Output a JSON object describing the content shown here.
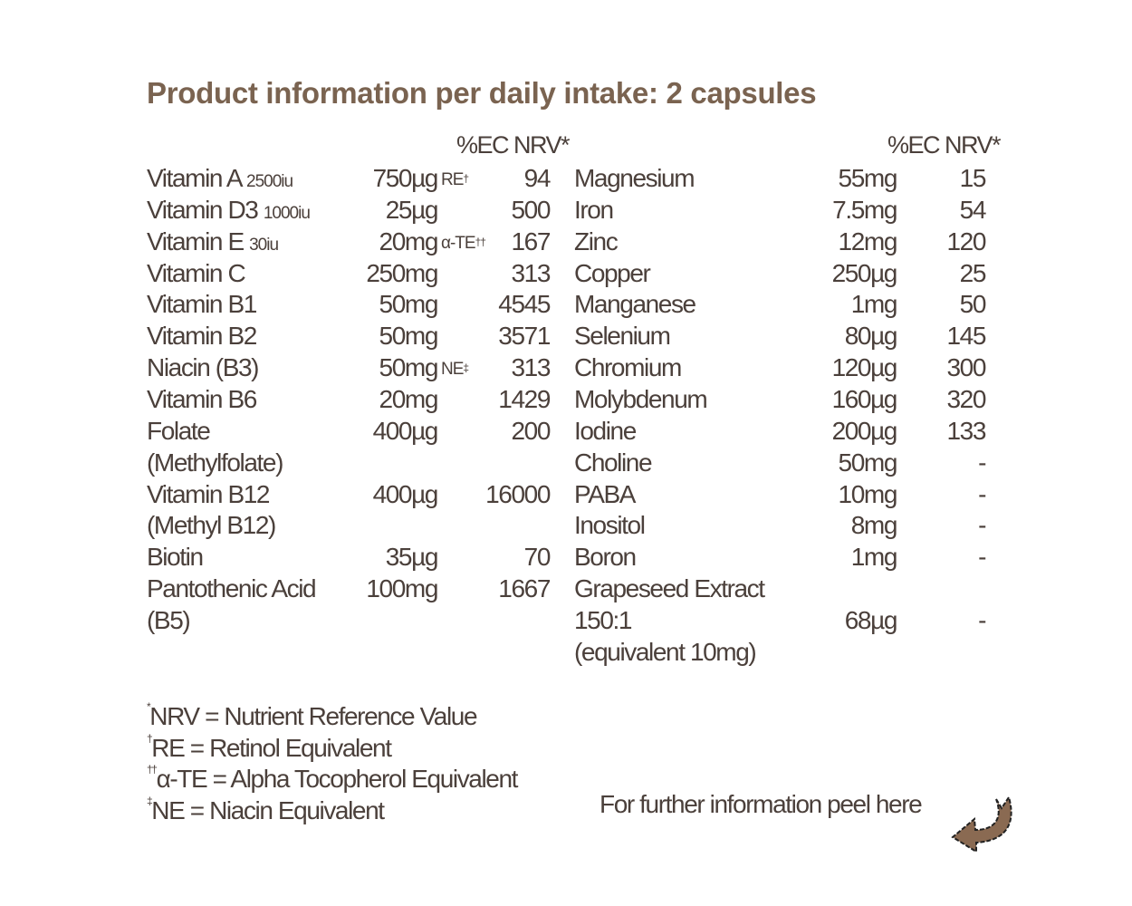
{
  "title": "Product information per daily intake: 2 capsules",
  "column_header": "%EC NRV*",
  "left_rows": [
    {
      "name": "Vitamin A",
      "note": "2500iu",
      "amount": "750µg",
      "unit_note": "RE",
      "unit_sup": "†",
      "nrv": "94"
    },
    {
      "name": "Vitamin D3",
      "note": "1000iu",
      "amount": "25µg",
      "nrv": "500"
    },
    {
      "name": "Vitamin E",
      "note": "30iu",
      "amount": "20mg",
      "unit_note": "α-TE",
      "unit_sup": "††",
      "nrv": "167"
    },
    {
      "name": "Vitamin C",
      "amount": "250mg",
      "nrv": "313"
    },
    {
      "name": "Vitamin B1",
      "amount": "50mg",
      "nrv": "4545"
    },
    {
      "name": "Vitamin B2",
      "amount": "50mg",
      "nrv": "3571"
    },
    {
      "name": "Niacin (B3)",
      "amount": "50mg",
      "unit_note": "NE",
      "unit_sup": "‡",
      "nrv": "313"
    },
    {
      "name": "Vitamin B6",
      "amount": "20mg",
      "nrv": "1429"
    },
    {
      "name": "Folate",
      "amount": "400µg",
      "nrv": "200"
    },
    {
      "name": "(Methylfolate)"
    },
    {
      "name": "Vitamin B12",
      "amount": "400µg",
      "nrv": "16000"
    },
    {
      "name": "(Methyl B12)"
    },
    {
      "name": "Biotin",
      "amount": "35µg",
      "nrv": "70"
    },
    {
      "name": "Pantothenic Acid",
      "amount": "100mg",
      "nrv": "1667"
    },
    {
      "name": "(B5)"
    }
  ],
  "right_rows": [
    {
      "name": "Magnesium",
      "amount": "55mg",
      "nrv": "15"
    },
    {
      "name": "Iron",
      "amount": "7.5mg",
      "nrv": "54"
    },
    {
      "name": "Zinc",
      "amount": "12mg",
      "nrv": "120"
    },
    {
      "name": "Copper",
      "amount": "250µg",
      "nrv": "25"
    },
    {
      "name": "Manganese",
      "amount": "1mg",
      "nrv": "50"
    },
    {
      "name": "Selenium",
      "amount": "80µg",
      "nrv": "145"
    },
    {
      "name": "Chromium",
      "amount": "120µg",
      "nrv": "300"
    },
    {
      "name": "Molybdenum",
      "amount": "160µg",
      "nrv": "320"
    },
    {
      "name": "Iodine",
      "amount": "200µg",
      "nrv": "133"
    },
    {
      "name": "Choline",
      "amount": "50mg",
      "nrv": "-"
    },
    {
      "name": "PABA",
      "amount": "10mg",
      "nrv": "-"
    },
    {
      "name": "Inositol",
      "amount": "8mg",
      "nrv": "-"
    },
    {
      "name": "Boron",
      "amount": "1mg",
      "nrv": "-"
    },
    {
      "name": "Grapeseed Extract"
    },
    {
      "name": "150:1",
      "amount": "68µg",
      "nrv": "-"
    },
    {
      "name": "(equivalent 10mg)"
    }
  ],
  "footnotes": [
    {
      "mark": "*",
      "text": "NRV = Nutrient Reference Value"
    },
    {
      "mark": "†",
      "text": "RE = Retinol Equivalent"
    },
    {
      "mark": "††",
      "text": "α-TE = Alpha Tocopherol Equivalent"
    },
    {
      "mark": "‡",
      "text": "NE = Niacin Equivalent"
    }
  ],
  "peel_text": "For further information peel here",
  "icons": {
    "peel": "curved-arrow-left-icon"
  },
  "colors": {
    "title": "#7a6350",
    "text": "#4b403b",
    "arrow": "#8a6a52"
  }
}
